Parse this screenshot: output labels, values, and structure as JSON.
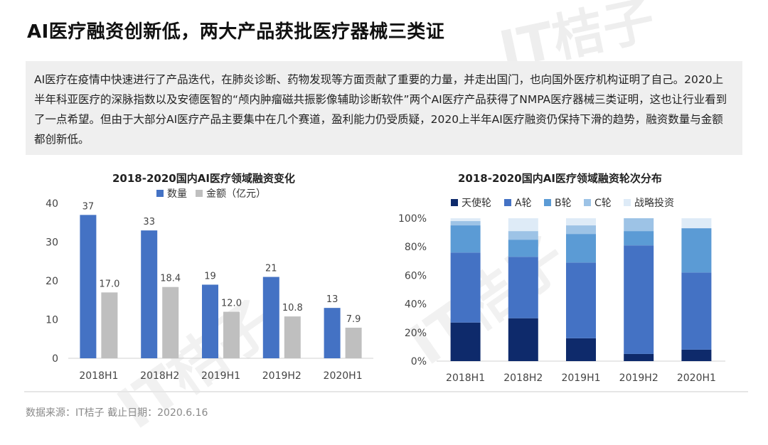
{
  "title": "AI医疗融资创新低，两大产品获批医疗器械三类证",
  "summary": "AI医疗在疫情中快速进行了产品迭代，在肺炎诊断、药物发现等方面贡献了重要的力量，并走出国门，也向国外医疗机构证明了自己。2020上半年科亚医疗的深脉指数以及安德医智的“颅内肿瘤磁共振影像辅助诊断软件”两个AI医疗产品获得了NMPA医疗器械三类证明，这也让行业看到了一点希望。但由于大部分AI医疗产品主要集中在几个赛道，盈利能力仍受质疑，2020上半年AI医疗融资仍保持下滑的趋势，融资数量与金额都创新低。",
  "watermark": "IT桔子",
  "source": "数据来源：IT桔子  截止日期：2020.6.16",
  "chart_data": [
    {
      "type": "bar",
      "title": "2018-2020国内AI医疗领域融资变化",
      "categories": [
        "2018H1",
        "2018H2",
        "2019H1",
        "2019H2",
        "2020H1"
      ],
      "series": [
        {
          "name": "数量",
          "values": [
            37,
            33,
            19,
            21,
            13
          ],
          "labels": [
            "37",
            "33",
            "19",
            "21",
            "13"
          ],
          "color": "#4472c4"
        },
        {
          "name": "金额（亿元）",
          "values": [
            17.0,
            18.4,
            12.0,
            10.8,
            7.9
          ],
          "labels": [
            "17.0",
            "18.4",
            "12.0",
            "10.8",
            "7.9"
          ],
          "color": "#bfbfbf"
        }
      ],
      "ylim": [
        0,
        40
      ],
      "yticks": [
        0,
        10,
        20,
        30,
        40
      ],
      "legend": "top"
    },
    {
      "type": "bar",
      "stacked": true,
      "title": "2018-2020国内AI医疗领域融资轮次分布",
      "categories": [
        "2018H1",
        "2018H2",
        "2019H1",
        "2019H2",
        "2020H1"
      ],
      "series": [
        {
          "name": "天使轮",
          "values": [
            27,
            30,
            16,
            5,
            8
          ],
          "color": "#0e2a6b"
        },
        {
          "name": "A轮",
          "values": [
            49,
            43,
            53,
            76,
            54
          ],
          "color": "#4472c4"
        },
        {
          "name": "B轮",
          "values": [
            19,
            12,
            20,
            10,
            31
          ],
          "color": "#5b9bd5"
        },
        {
          "name": "C轮",
          "values": [
            3,
            6,
            6,
            9,
            0
          ],
          "color": "#9dc3e6"
        },
        {
          "name": "战略投资",
          "values": [
            2,
            9,
            5,
            0,
            7
          ],
          "color": "#deebf7"
        }
      ],
      "ylim": [
        0,
        100
      ],
      "yticks": [
        "0%",
        "20%",
        "40%",
        "60%",
        "80%",
        "100%"
      ],
      "legend": "top"
    }
  ]
}
